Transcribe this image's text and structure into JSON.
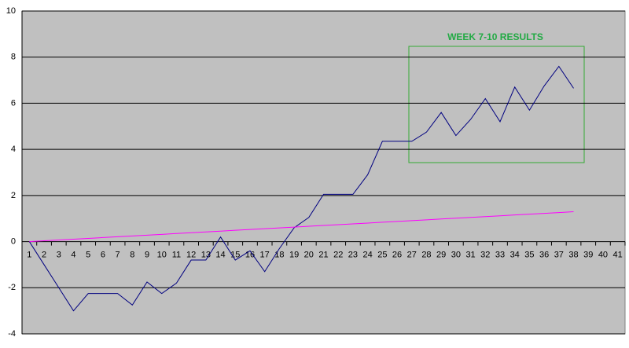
{
  "chart_data": {
    "type": "line",
    "annotation": "WEEK 7-10 RESULTS",
    "categories": [
      "1",
      "2",
      "3",
      "4",
      "5",
      "6",
      "7",
      "8",
      "9",
      "10",
      "11",
      "12",
      "13",
      "14",
      "15",
      "16",
      "17",
      "18",
      "19",
      "20",
      "21",
      "22",
      "23",
      "24",
      "25",
      "26",
      "27",
      "28",
      "29",
      "30",
      "31",
      "32",
      "33",
      "34",
      "35",
      "36",
      "37",
      "38",
      "39",
      "40",
      "41"
    ],
    "series": [
      {
        "color": "#000080",
        "values": [
          0,
          -1,
          -2,
          -3,
          -2.25,
          -2.25,
          -2.25,
          -2.75,
          -1.75,
          -2.25,
          -1.8,
          -0.8,
          -0.8,
          0.2,
          -0.8,
          -0.4,
          -1.3,
          -0.3,
          0.6,
          1.05,
          2.05,
          2.05,
          2.05,
          2.9,
          4.35,
          4.35,
          4.35,
          4.75,
          5.6,
          4.6,
          5.3,
          6.2,
          5.2,
          6.7,
          5.7,
          6.75,
          7.6,
          6.65,
          null,
          null,
          null
        ]
      },
      {
        "color": "#ff00ff",
        "values": [
          0,
          0.035,
          0.07,
          0.105,
          0.14,
          0.175,
          0.21,
          0.245,
          0.28,
          0.315,
          0.35,
          0.385,
          0.42,
          0.455,
          0.49,
          0.525,
          0.56,
          0.595,
          0.63,
          0.665,
          0.7,
          0.735,
          0.77,
          0.805,
          0.84,
          0.875,
          0.91,
          0.945,
          0.98,
          1.015,
          1.05,
          1.085,
          1.12,
          1.155,
          1.19,
          1.225,
          1.26,
          1.295,
          null,
          null,
          null
        ]
      }
    ],
    "ylim": [
      -4,
      10
    ],
    "yticks": [
      -4,
      -2,
      0,
      2,
      4,
      6,
      8,
      10
    ],
    "grid": true
  }
}
